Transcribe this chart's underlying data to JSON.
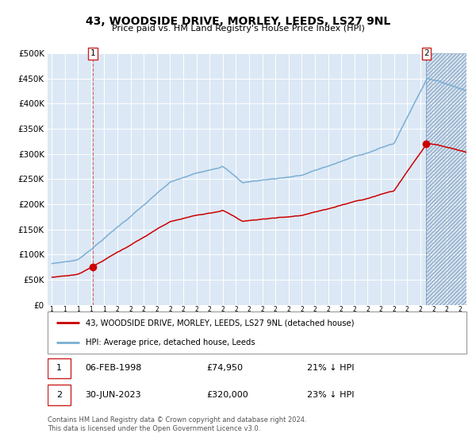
{
  "title": "43, WOODSIDE DRIVE, MORLEY, LEEDS, LS27 9NL",
  "subtitle": "Price paid vs. HM Land Registry's House Price Index (HPI)",
  "ylim": [
    0,
    500000
  ],
  "yticks": [
    0,
    50000,
    100000,
    150000,
    200000,
    250000,
    300000,
    350000,
    400000,
    450000,
    500000
  ],
  "ytick_labels": [
    "£0",
    "£50K",
    "£100K",
    "£150K",
    "£200K",
    "£250K",
    "£300K",
    "£350K",
    "£400K",
    "£450K",
    "£500K"
  ],
  "bg_color": "#dce8f5",
  "grid_color": "#ffffff",
  "red_line_color": "#cc0000",
  "blue_line_color": "#7aafd4",
  "purchase1_year": 1998,
  "purchase1_month": 2,
  "purchase1_price": 74950,
  "purchase1_hpi_pct": "21%",
  "purchase1_date_label": "06-FEB-1998",
  "purchase2_year": 2023,
  "purchase2_month": 6,
  "purchase2_price": 320000,
  "purchase2_hpi_pct": "23%",
  "purchase2_date_label": "30-JUN-2023",
  "legend_label1": "43, WOODSIDE DRIVE, MORLEY, LEEDS, LS27 9NL (detached house)",
  "legend_label2": "HPI: Average price, detached house, Leeds",
  "footnote": "Contains HM Land Registry data © Crown copyright and database right 2024.\nThis data is licensed under the Open Government Licence v3.0.",
  "xstart": 1995,
  "xend": 2026,
  "title_fontsize": 10,
  "subtitle_fontsize": 8
}
